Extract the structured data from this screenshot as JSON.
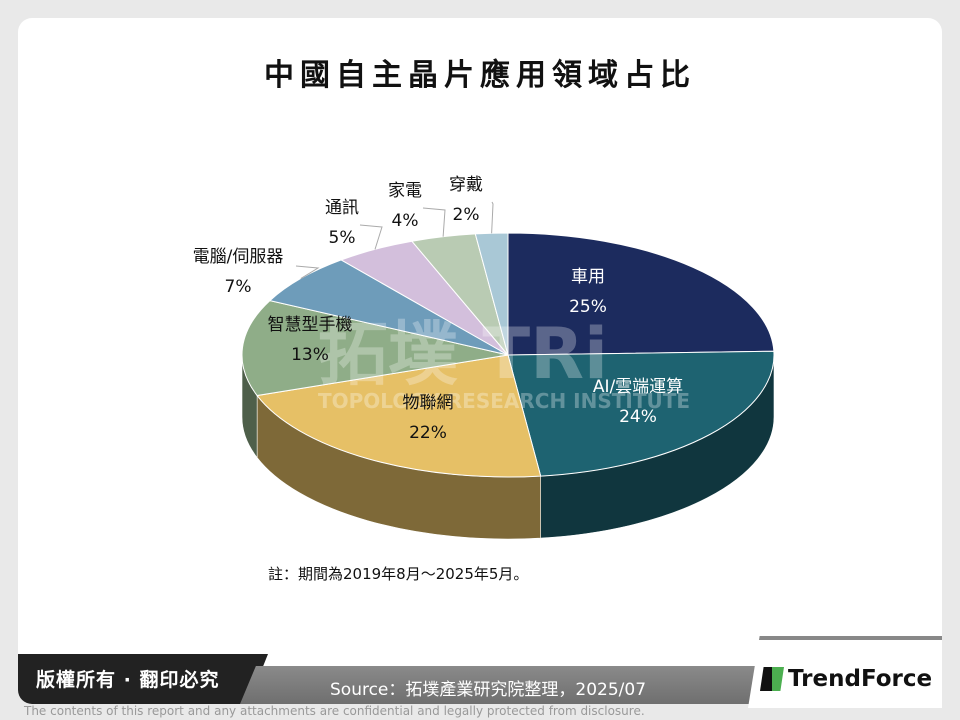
{
  "title": "中國自主晶片應用領域占比",
  "chart_data": {
    "type": "pie",
    "title": "中國自主晶片應用領域占比",
    "slices": [
      {
        "label": "車用",
        "value": 25,
        "display": "25%",
        "color": "#1c2b5e"
      },
      {
        "label": "AI/雲端運算",
        "value": 24,
        "display": "24%",
        "color": "#1e6371"
      },
      {
        "label": "物聯網",
        "value": 22,
        "display": "22%",
        "color": "#e6c066"
      },
      {
        "label": "智慧型手機",
        "value": 13,
        "display": "13%",
        "color": "#8fad88"
      },
      {
        "label": "電腦/伺服器",
        "value": 7,
        "display": "7%",
        "color": "#6e9cba"
      },
      {
        "label": "通訊",
        "value": 5,
        "display": "5%",
        "color": "#d3bfdc"
      },
      {
        "label": "家電",
        "value": 4,
        "display": "4%",
        "color": "#b9cbb3"
      },
      {
        "label": "穿戴",
        "value": 2,
        "display": "2%",
        "color": "#a9c8d6"
      }
    ]
  },
  "watermark": {
    "main": "拓墣 TRi",
    "sub": "TOPOLOGY RESEARCH INSTITUTE"
  },
  "note": "註：期間為2019年8月～2025年5月。",
  "footer": {
    "copyright": "版權所有 · 翻印必究",
    "source": "Source：拓墣產業研究院整理，2025/07",
    "brand": "TrendForce",
    "disclaimer": "The contents of this report and any attachments are confidential and legally protected from disclosure."
  }
}
